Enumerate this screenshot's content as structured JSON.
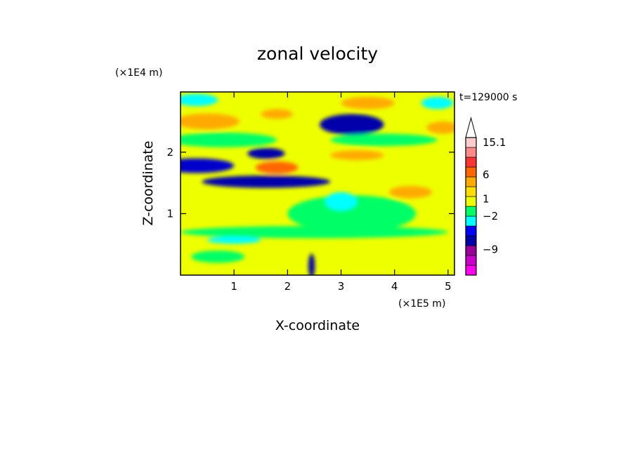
{
  "chart_data": {
    "type": "heatmap",
    "title": "zonal velocity",
    "xlabel": "X-coordinate",
    "ylabel": "Z-coordinate",
    "x_unit_label": "(×1E5 m)",
    "y_unit_label": "(×1E4 m)",
    "time_label": "t=129000 s",
    "xlim": [
      0,
      5.12
    ],
    "ylim": [
      0,
      2.98
    ],
    "x_ticks": [
      1,
      2,
      3,
      4,
      5
    ],
    "y_ticks": [
      1,
      2
    ],
    "colorbar": {
      "labels": [
        {
          "value": 15.1,
          "text": "15.1"
        },
        {
          "value": 6,
          "text": "6"
        },
        {
          "value": 1,
          "text": "1"
        },
        {
          "value": -2,
          "text": "−2"
        },
        {
          "value": -9,
          "text": "−9"
        }
      ],
      "levels": [
        {
          "color": "#f0e"
        },
        {
          "color": "#c0c"
        },
        {
          "color": "#909"
        },
        {
          "color": "#00a"
        },
        {
          "color": "#00f"
        },
        {
          "color": "#0ff"
        },
        {
          "color": "#0f6"
        },
        {
          "color": "#ef0"
        },
        {
          "color": "#fd0"
        },
        {
          "color": "#fa0"
        },
        {
          "color": "#f60"
        },
        {
          "color": "#f33"
        },
        {
          "color": "#f88"
        },
        {
          "color": "#fcc"
        }
      ],
      "extend_max_color": "#ffffff"
    },
    "field_background_color": "#eeff00",
    "features": [
      {
        "desc": "negative jet",
        "x": 0.3,
        "z": 1.78,
        "rx": 0.7,
        "rz": 0.12,
        "color": "#00c"
      },
      {
        "desc": "negative jet",
        "x": 1.6,
        "z": 1.52,
        "rx": 1.2,
        "rz": 0.1,
        "color": "#00a"
      },
      {
        "desc": "negative core",
        "x": 3.2,
        "z": 2.45,
        "rx": 0.6,
        "rz": 0.17,
        "color": "#00a"
      },
      {
        "desc": "negative core",
        "x": 1.6,
        "z": 1.98,
        "rx": 0.35,
        "rz": 0.09,
        "color": "#00a"
      },
      {
        "desc": "positive core",
        "x": 1.8,
        "z": 1.75,
        "rx": 0.4,
        "rz": 0.1,
        "color": "#f60"
      },
      {
        "desc": "positive core",
        "x": 0.5,
        "z": 2.5,
        "rx": 0.6,
        "rz": 0.13,
        "color": "#fa0"
      },
      {
        "desc": "positive core",
        "x": 3.3,
        "z": 1.95,
        "rx": 0.5,
        "rz": 0.08,
        "color": "#fa0"
      },
      {
        "desc": "positive core",
        "x": 4.3,
        "z": 1.35,
        "rx": 0.4,
        "rz": 0.1,
        "color": "#fa0"
      },
      {
        "desc": "positive core",
        "x": 4.9,
        "z": 2.4,
        "rx": 0.3,
        "rz": 0.1,
        "color": "#fa0"
      },
      {
        "desc": "positive core",
        "x": 1.8,
        "z": 2.62,
        "rx": 0.3,
        "rz": 0.08,
        "color": "#fa0"
      },
      {
        "desc": "positive core",
        "x": 3.5,
        "z": 2.8,
        "rx": 0.5,
        "rz": 0.1,
        "color": "#fa0"
      },
      {
        "desc": "weak negative",
        "x": 3.2,
        "z": 1.0,
        "rx": 1.2,
        "rz": 0.3,
        "color": "#0f6"
      },
      {
        "desc": "weak negative",
        "x": 2.5,
        "z": 0.7,
        "rx": 2.5,
        "rz": 0.1,
        "color": "#0f6"
      },
      {
        "desc": "weak negative",
        "x": 0.7,
        "z": 0.3,
        "rx": 0.5,
        "rz": 0.1,
        "color": "#0f6"
      },
      {
        "desc": "weak negative",
        "x": 0.8,
        "z": 2.2,
        "rx": 1.0,
        "rz": 0.12,
        "color": "#0f6"
      },
      {
        "desc": "weak negative",
        "x": 3.8,
        "z": 2.2,
        "rx": 1.0,
        "rz": 0.1,
        "color": "#0f6"
      },
      {
        "desc": "weak negative",
        "x": 0.3,
        "z": 2.85,
        "rx": 0.4,
        "rz": 0.1,
        "color": "#0ff"
      },
      {
        "desc": "weak negative",
        "x": 1.0,
        "z": 0.57,
        "rx": 0.5,
        "rz": 0.06,
        "color": "#0ff"
      },
      {
        "desc": "weak negative",
        "x": 3.0,
        "z": 1.2,
        "rx": 0.3,
        "rz": 0.15,
        "color": "#0ff"
      },
      {
        "desc": "weak negative",
        "x": 4.8,
        "z": 2.8,
        "rx": 0.3,
        "rz": 0.1,
        "color": "#0ff"
      },
      {
        "desc": "mountain wave",
        "x": 2.45,
        "z": 0.15,
        "rx": 0.06,
        "rz": 0.2,
        "color": "#00a"
      }
    ]
  }
}
